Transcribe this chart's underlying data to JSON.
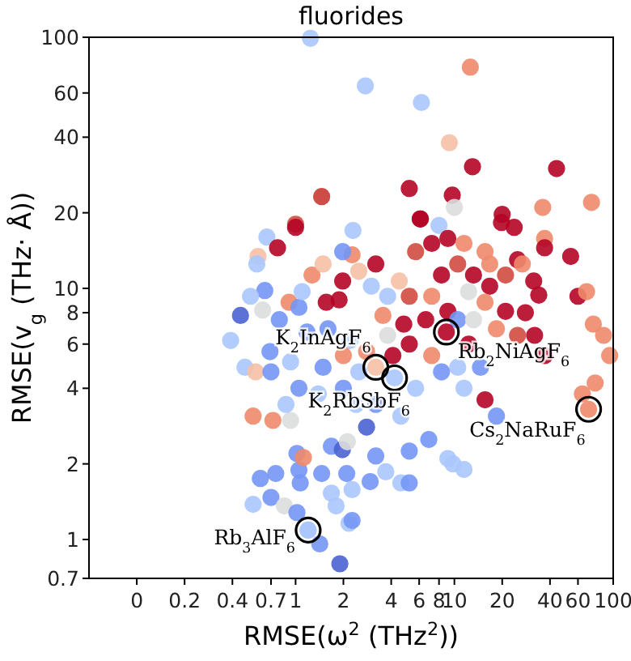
{
  "chart_data": {
    "type": "scatter",
    "title": "fluorides",
    "xlabel": "RMSE(ω$^{2}$ (THz$^{2}$))",
    "ylabel": "RMSE(v$_{g}$ (THz· Å))",
    "log": "xy",
    "xlim": [
      0.05,
      100
    ],
    "ylim": [
      0.7,
      100
    ],
    "xticks": [
      {
        "value": 0.1,
        "label": "0"
      },
      0.2,
      0.4,
      0.7,
      1,
      2,
      4,
      6,
      8,
      10,
      20,
      40,
      60,
      100
    ],
    "yticks": [
      0.7,
      1,
      2,
      4,
      6,
      8,
      10,
      20,
      40,
      60,
      100
    ],
    "marker": "circle",
    "annotations": [
      {
        "text": "K$_{2}$InAgF$_{6}$",
        "x": 3.2,
        "y": 4.85
      },
      {
        "text": "K$_{2}$RbSbF$_{6}$",
        "x": 4.2,
        "y": 4.4
      },
      {
        "text": "Rb$_{2}$NiAgF$_{6}$",
        "x": 8.9,
        "y": 6.7
      },
      {
        "text": "Cs$_{2}$NaRuF$_{6}$",
        "x": 70,
        "y": 3.3
      },
      {
        "text": "Rb$_{3}$AlF$_{6}$",
        "x": 1.2,
        "y": 1.09
      }
    ],
    "series": [
      {
        "x": [
          1.24,
          2.75,
          6.2,
          12.6,
          9.3,
          13,
          5.2,
          9.7,
          10,
          44,
          36,
          73,
          20,
          1.46,
          1,
          2.3,
          6.1,
          8,
          0.54,
          0.6,
          0.75,
          0.7,
          0.85,
          1.02,
          1.05,
          1.07,
          1.02,
          1.2,
          1.42,
          1.9,
          1.46,
          1.68,
          1.97,
          1.68,
          1.8,
          2.27,
          2.17,
          2.27,
          2.1,
          2.95,
          3.2,
          3.7,
          4.6,
          5.2,
          5.2,
          6.9,
          9.1,
          11.5,
          9.8,
          1.12,
          2.12,
          0.72,
          0.93,
          2.8,
          0.66,
          0.77,
          1.0,
          0.58,
          0.57,
          0.64,
          0.52,
          0.45,
          0.62,
          0.39,
          0.48,
          0.56,
          0.69,
          0.7,
          0.79,
          0.91,
          1.05,
          1.1,
          1.18,
          0.93,
          1.05,
          0.87,
          0.54,
          1.39,
          1.49,
          1.6,
          1.56,
          1.88,
          1.98,
          2.27,
          2.5,
          3.2,
          3.0,
          2.2,
          2.0,
          2.8,
          2.5,
          2.0,
          2.4,
          3.2,
          4.6,
          5.7,
          5.2,
          4.8,
          5.2,
          4.5,
          5.7,
          7.2,
          6.1,
          9.1,
          11.5,
          15.6,
          19.8,
          23.8,
          37,
          37,
          54,
          31.6,
          25,
          21,
          16.7,
          13.2,
          10.5,
          8.3,
          12.3,
          15.6,
          21,
          28,
          34,
          60,
          68,
          75,
          87,
          95,
          77,
          64,
          37,
          32,
          25,
          18.4,
          12.3,
          10.5,
          14.6,
          15.6,
          18.4,
          11.5,
          8.3,
          7.2,
          6.6,
          7.2,
          9.1,
          10.5,
          13.2,
          16.7,
          26.8,
          3.8,
          3.55,
          3.8,
          4.1,
          1.27,
          1.49,
          1.98,
          3.2,
          4.2,
          8.9,
          70,
          1.2
        ],
        "values": [
          99,
          64,
          55,
          76,
          38,
          30.5,
          25,
          23.5,
          21,
          30,
          21,
          22,
          19.7,
          23.2,
          18,
          17,
          18.9,
          17.8,
          1.38,
          1.75,
          1.83,
          1.47,
          1.36,
          2.2,
          1.89,
          1.68,
          1.28,
          1.09,
          0.96,
          0.8,
          1.83,
          2.35,
          2.28,
          1.53,
          1.36,
          1.58,
          1.16,
          1.19,
          1.83,
          1.7,
          2.15,
          1.86,
          1.68,
          1.68,
          2.25,
          2.5,
          2.1,
          1.9,
          2.0,
          2.12,
          2.45,
          2.98,
          2.98,
          2.8,
          16,
          14.5,
          17.5,
          13.4,
          12.5,
          9.8,
          9.3,
          7.8,
          8.2,
          6.2,
          4.85,
          4.65,
          5.6,
          4.65,
          7.5,
          8.8,
          8.4,
          9.7,
          6.7,
          5.1,
          4.0,
          3.45,
          3.1,
          3.8,
          4.85,
          6.9,
          8.8,
          9.0,
          10.7,
          13.6,
          11.7,
          12.5,
          10.2,
          6.2,
          5.4,
          5.6,
          4.65,
          4.0,
          3.45,
          3.45,
          3.1,
          4.0,
          6.0,
          7.2,
          9.3,
          10.7,
          14.0,
          15.1,
          18.9,
          15.8,
          15.1,
          14.0,
          18.3,
          17.5,
          15.8,
          14.5,
          13.4,
          10.7,
          13.0,
          11.3,
          10.2,
          11.3,
          12.5,
          11.3,
          9.7,
          8.8,
          8.1,
          8.0,
          9.4,
          9.3,
          9.7,
          7.2,
          6.5,
          5.4,
          4.2,
          3.8,
          5.4,
          6.5,
          6.5,
          6.9,
          6.0,
          4.85,
          4.85,
          3.6,
          3.1,
          4.0,
          4.65,
          5.4,
          7.5,
          9.3,
          8.1,
          7.5,
          7.5,
          12.5,
          12.5,
          9.3,
          7.8,
          6.5,
          5.4,
          11.3,
          12.5,
          14.0,
          4.85,
          4.4,
          6.7,
          3.3,
          1.09
        ],
        "colors": [
          "#aac7fd",
          "#aac7fd",
          "#aac7fd",
          "#f08a6c",
          "#f5c0a6",
          "#b40426",
          "#b40426",
          "#b40426",
          "#dcdddd",
          "#b40426",
          "#f08a6c",
          "#f08a6c",
          "#b40426",
          "#c93a35",
          "#d24b40",
          "#aac7fd",
          "#b40426",
          "#aac7fd",
          "#aac7fd",
          "#7396f5",
          "#7396f5",
          "#7396f5",
          "#dcdddd",
          "#7396f5",
          "#7396f5",
          "#7396f5",
          "#7396f5",
          "#aac7fd",
          "#7396f5",
          "#4a63d3",
          "#7396f5",
          "#7396f5",
          "#4a63d3",
          "#aac7fd",
          "#aac7fd",
          "#aac7fd",
          "#aac7fd",
          "#7396f5",
          "#7396f5",
          "#7396f5",
          "#7396f5",
          "#aac7fd",
          "#aac7fd",
          "#7396f5",
          "#7396f5",
          "#7396f5",
          "#aac7fd",
          "#aac7fd",
          "#aac7fd",
          "#f08a6c",
          "#dcdddd",
          "#f08a6c",
          "#dcdddd",
          "#4a63d3",
          "#aac7fd",
          "#b40426",
          "#b40426",
          "#f5c0a6",
          "#aac7fd",
          "#7396f5",
          "#aac7fd",
          "#4a63d3",
          "#dcdddd",
          "#aac7fd",
          "#aac7fd",
          "#f5c0a6",
          "#7396f5",
          "#7396f5",
          "#7396f5",
          "#f08a6c",
          "#7396f5",
          "#aac7fd",
          "#7396f5",
          "#aac7fd",
          "#7396f5",
          "#aac7fd",
          "#f08a6c",
          "#aac7fd",
          "#7396f5",
          "#7396f5",
          "#b40426",
          "#b40426",
          "#b40426",
          "#f08a6c",
          "#f5c0a6",
          "#b40426",
          "#aac7fd",
          "#aac7fd",
          "#f08a6c",
          "#f08a6c",
          "#aac7fd",
          "#7396f5",
          "#aac7fd",
          "#7396f5",
          "#aac7fd",
          "#aac7fd",
          "#b40426",
          "#b40426",
          "#d24b40",
          "#f5c0a6",
          "#d24b40",
          "#b40426",
          "#b40426",
          "#b40426",
          "#f08a6c",
          "#f08a6c",
          "#b40426",
          "#b40426",
          "#f08a6c",
          "#b40426",
          "#b40426",
          "#b40426",
          "#b40426",
          "#d24b40",
          "#b40426",
          "#b40426",
          "#d24b40",
          "#b40426",
          "#dcdddd",
          "#f08a6c",
          "#b40426",
          "#b40426",
          "#b40426",
          "#b40426",
          "#f08a6c",
          "#f08a6c",
          "#f08a6c",
          "#f08a6c",
          "#f08a6c",
          "#f08a6c",
          "#b40426",
          "#b40426",
          "#d24b40",
          "#f08a6c",
          "#b40426",
          "#aac7fd",
          "#7396f5",
          "#b40426",
          "#7396f5",
          "#aac7fd",
          "#7396f5",
          "#f08a6c",
          "#b40426",
          "#f08a6c",
          "#b40426",
          "#7396f5",
          "#dcdddd",
          "#f08a6c",
          "#f08a6c",
          "#aac7fd",
          "#f08a6c",
          "#dcdddd",
          "#b40426",
          "#f08a6c",
          "#f5c0a6",
          "#7396f5",
          "#f5c0a6",
          "#aac7fd",
          "#b40426",
          "#f08a6c",
          "#aac7fd"
        ]
      }
    ]
  }
}
